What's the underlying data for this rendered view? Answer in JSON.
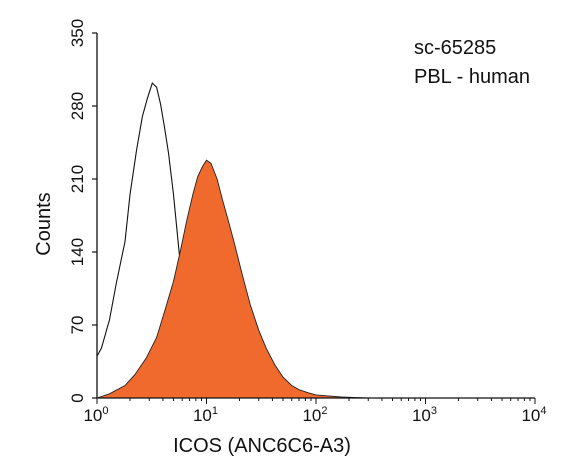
{
  "chart_data": {
    "type": "area",
    "title": "",
    "xlabel": "ICOS (ANC6C6-A3)",
    "ylabel": "Counts",
    "x_scale": "log",
    "xlim": [
      1,
      10000
    ],
    "ylim": [
      0,
      350
    ],
    "x_ticks": [
      {
        "base": "10",
        "exp": "0",
        "value": 1
      },
      {
        "base": "10",
        "exp": "1",
        "value": 10
      },
      {
        "base": "10",
        "exp": "2",
        "value": 100
      },
      {
        "base": "10",
        "exp": "3",
        "value": 1000
      },
      {
        "base": "10",
        "exp": "4",
        "value": 10000
      }
    ],
    "y_ticks": [
      "0",
      "70",
      "140",
      "210",
      "280",
      "350"
    ],
    "y_tick_values": [
      0,
      70,
      140,
      210,
      280,
      350
    ],
    "annotations": [
      "sc-65285",
      "PBL - human"
    ],
    "grid": false,
    "colors": {
      "filled": "#ef6a2c",
      "outline": "#111111"
    },
    "series": [
      {
        "style": "outline",
        "x": [
          1.0,
          1.1,
          1.3,
          1.5,
          1.8,
          2.0,
          2.3,
          2.6,
          2.9,
          3.2,
          3.5,
          3.8,
          4.1,
          4.5,
          5.0,
          5.5,
          6.0,
          6.6,
          7.5,
          8.5,
          10,
          12,
          14,
          16,
          20,
          25,
          30,
          40,
          50,
          60,
          80,
          100
        ],
        "y": [
          40,
          48,
          75,
          110,
          150,
          195,
          238,
          270,
          288,
          302,
          298,
          282,
          262,
          235,
          195,
          150,
          110,
          78,
          52,
          40,
          30,
          22,
          16,
          12,
          8,
          6,
          5,
          4,
          3,
          2,
          1,
          0
        ]
      },
      {
        "style": "filled",
        "x": [
          1.0,
          1.3,
          1.8,
          2.2,
          2.8,
          3.5,
          4.2,
          5.0,
          5.8,
          6.6,
          7.5,
          8.3,
          9.2,
          10,
          11,
          12.5,
          14,
          16,
          18,
          21,
          25,
          30,
          35,
          42,
          50,
          60,
          70,
          85,
          100,
          130,
          170,
          220,
          300
        ],
        "y": [
          0,
          4,
          12,
          22,
          38,
          58,
          85,
          112,
          142,
          170,
          195,
          212,
          222,
          228,
          225,
          210,
          190,
          168,
          148,
          120,
          90,
          65,
          48,
          32,
          20,
          12,
          8,
          5,
          3,
          2,
          1,
          0.5,
          0
        ]
      }
    ]
  }
}
